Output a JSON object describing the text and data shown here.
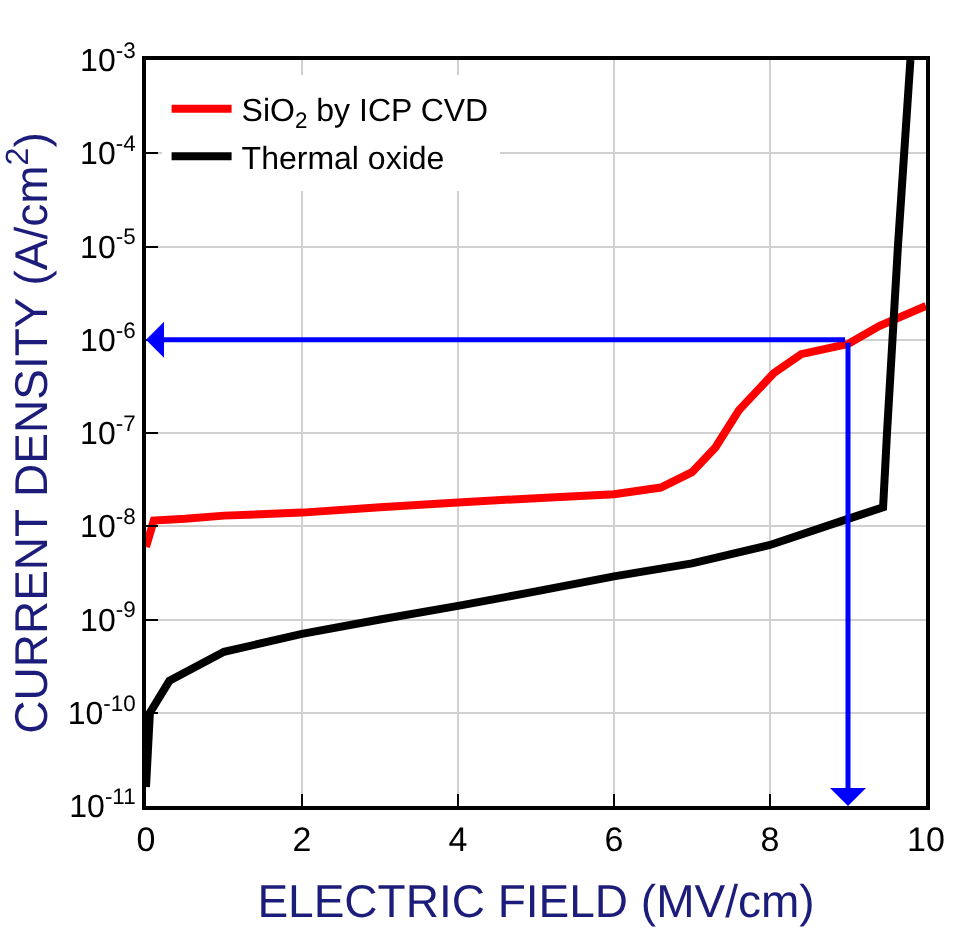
{
  "chart_data": {
    "type": "line",
    "xlabel": "ELECTRIC FIELD (MV/cm)",
    "ylabel": "CURRENT DENSITY (A/cm$^{2}$)",
    "log": "y",
    "xlim": [
      0,
      10
    ],
    "xticks": [
      0,
      2,
      4,
      6,
      8,
      10
    ],
    "ylim": [
      1e-11,
      0.001
    ],
    "yticks": [
      {
        "value": 1e-11,
        "label": "10$^{-11}$"
      },
      {
        "value": 1e-10,
        "label": "10$^{-10}$"
      },
      {
        "value": 1e-09,
        "label": "10$^{-9}$"
      },
      {
        "value": 1e-08,
        "label": "10$^{-8}$"
      },
      {
        "value": 1e-07,
        "label": "10$^{-7}$"
      },
      {
        "value": 1e-06,
        "label": "10$^{-6}$"
      },
      {
        "value": 1e-05,
        "label": "10$^{-5}$"
      },
      {
        "value": 0.0001,
        "label": "10$^{-4}$"
      },
      {
        "value": 0.001,
        "label": "10$^{-3}$"
      }
    ],
    "grid": true,
    "legend": "top left",
    "marker": "none",
    "line_style": "solid",
    "series": [
      {
        "name": "SiO$_{2}$ by ICP CVD",
        "color": "#ff0000",
        "x": [
          0,
          0.1,
          0.5,
          1,
          2,
          3,
          4,
          5,
          6,
          6.6,
          7,
          7.3,
          7.6,
          8.05,
          8.4,
          9,
          9.4,
          10
        ],
        "values": [
          6e-09,
          1.15e-08,
          1.2e-08,
          1.3e-08,
          1.4e-08,
          1.6e-08,
          1.8e-08,
          2e-08,
          2.2e-08,
          2.6e-08,
          3.8e-08,
          7e-08,
          1.75e-07,
          4.4e-07,
          7e-07,
          9e-07,
          1.4e-06,
          2.3e-06
        ]
      },
      {
        "name": "Thermal oxide",
        "color": "#000000",
        "x": [
          0,
          0.05,
          0.3,
          1,
          2,
          3,
          4,
          5,
          6,
          7,
          8,
          9,
          9.45,
          9.5,
          9.64,
          9.8
        ],
        "values": [
          1.6e-11,
          1e-10,
          2.2e-10,
          4.5e-10,
          7e-10,
          1e-09,
          1.4e-09,
          2e-09,
          2.9e-09,
          4e-09,
          6.3e-09,
          1.2e-08,
          1.6e-08,
          1e-07,
          1e-05,
          0.001
        ]
      }
    ],
    "ref_lines": [
      {
        "axis": "y",
        "value": 1e-06,
        "color": "#0000ff"
      },
      {
        "axis": "x",
        "value": 9,
        "color": "#0000ff"
      }
    ]
  }
}
